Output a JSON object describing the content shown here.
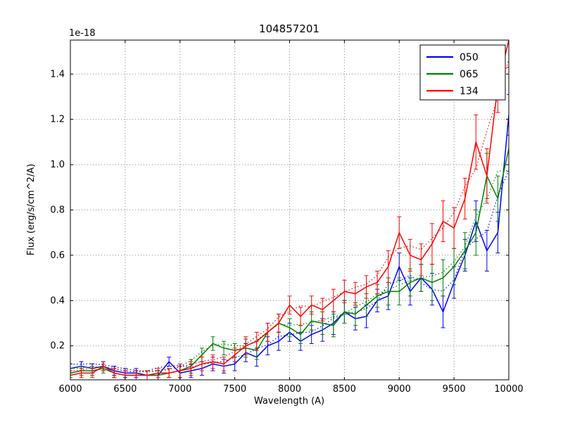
{
  "chart_data": {
    "type": "line",
    "title": "104857201",
    "xlabel": "Wavelength (A)",
    "ylabel": "Flux (erg/s/cm^2/A)",
    "offset_label": "1e-18",
    "xlim": [
      6000,
      10000
    ],
    "ylim": [
      0.05,
      1.55
    ],
    "xticks": [
      6000,
      6500,
      7000,
      7500,
      8000,
      8500,
      9000,
      9500,
      10000
    ],
    "yticks": [
      0.2,
      0.4,
      0.6,
      0.8,
      1.0,
      1.2,
      1.4
    ],
    "grid": true,
    "legend_position": "upper right",
    "x": [
      6000,
      6100,
      6200,
      6300,
      6400,
      6500,
      6600,
      6700,
      6800,
      6900,
      7000,
      7100,
      7200,
      7300,
      7400,
      7500,
      7600,
      7700,
      7800,
      7900,
      8000,
      8100,
      8200,
      8300,
      8400,
      8500,
      8600,
      8700,
      8800,
      8900,
      9000,
      9100,
      9200,
      9300,
      9400,
      9500,
      9600,
      9700,
      9800,
      9900,
      10000
    ],
    "series": [
      {
        "name": "050",
        "color": "#0000ff",
        "values": [
          0.1,
          0.11,
          0.1,
          0.11,
          0.09,
          0.08,
          0.08,
          0.07,
          0.07,
          0.13,
          0.08,
          0.09,
          0.1,
          0.12,
          0.11,
          0.12,
          0.17,
          0.15,
          0.2,
          0.22,
          0.26,
          0.22,
          0.25,
          0.27,
          0.3,
          0.35,
          0.32,
          0.33,
          0.4,
          0.42,
          0.55,
          0.44,
          0.5,
          0.45,
          0.35,
          0.48,
          0.6,
          0.75,
          0.62,
          0.7,
          1.22
        ],
        "errors": [
          0.02,
          0.02,
          0.02,
          0.02,
          0.02,
          0.02,
          0.02,
          0.02,
          0.02,
          0.02,
          0.03,
          0.03,
          0.03,
          0.03,
          0.03,
          0.03,
          0.04,
          0.04,
          0.04,
          0.04,
          0.04,
          0.04,
          0.04,
          0.05,
          0.05,
          0.05,
          0.05,
          0.05,
          0.05,
          0.06,
          0.06,
          0.06,
          0.06,
          0.07,
          0.07,
          0.07,
          0.07,
          0.09,
          0.09,
          0.09,
          0.09
        ]
      },
      {
        "name": "065",
        "color": "#008000",
        "values": [
          0.08,
          0.09,
          0.09,
          0.1,
          0.08,
          0.07,
          0.07,
          0.07,
          0.07,
          0.08,
          0.09,
          0.11,
          0.16,
          0.21,
          0.19,
          0.18,
          0.19,
          0.18,
          0.26,
          0.3,
          0.28,
          0.25,
          0.31,
          0.3,
          0.29,
          0.35,
          0.34,
          0.38,
          0.42,
          0.44,
          0.44,
          0.48,
          0.5,
          0.48,
          0.5,
          0.55,
          0.62,
          0.7,
          0.95,
          0.85,
          1.07
        ],
        "errors": [
          0.02,
          0.02,
          0.02,
          0.02,
          0.02,
          0.02,
          0.02,
          0.02,
          0.02,
          0.02,
          0.03,
          0.03,
          0.03,
          0.03,
          0.03,
          0.03,
          0.04,
          0.04,
          0.04,
          0.04,
          0.04,
          0.04,
          0.04,
          0.05,
          0.05,
          0.05,
          0.05,
          0.05,
          0.05,
          0.06,
          0.06,
          0.06,
          0.06,
          0.08,
          0.08,
          0.08,
          0.08,
          0.1,
          0.1,
          0.1,
          0.1
        ]
      },
      {
        "name": "134",
        "color": "#ff0000",
        "values": [
          0.07,
          0.08,
          0.08,
          0.11,
          0.08,
          0.07,
          0.07,
          0.07,
          0.08,
          0.08,
          0.09,
          0.1,
          0.12,
          0.13,
          0.12,
          0.16,
          0.2,
          0.22,
          0.26,
          0.3,
          0.38,
          0.33,
          0.38,
          0.36,
          0.4,
          0.44,
          0.43,
          0.46,
          0.48,
          0.55,
          0.7,
          0.6,
          0.58,
          0.65,
          0.75,
          0.72,
          0.85,
          1.1,
          0.95,
          1.35,
          1.55
        ],
        "errors": [
          0.02,
          0.02,
          0.02,
          0.02,
          0.02,
          0.02,
          0.02,
          0.02,
          0.02,
          0.02,
          0.03,
          0.03,
          0.03,
          0.03,
          0.03,
          0.03,
          0.04,
          0.04,
          0.04,
          0.04,
          0.04,
          0.04,
          0.04,
          0.05,
          0.05,
          0.05,
          0.05,
          0.05,
          0.05,
          0.07,
          0.07,
          0.07,
          0.07,
          0.09,
          0.09,
          0.09,
          0.09,
          0.12,
          0.12,
          0.12,
          0.12
        ]
      }
    ],
    "legend": {
      "entries": [
        "050",
        "065",
        "134"
      ]
    }
  }
}
